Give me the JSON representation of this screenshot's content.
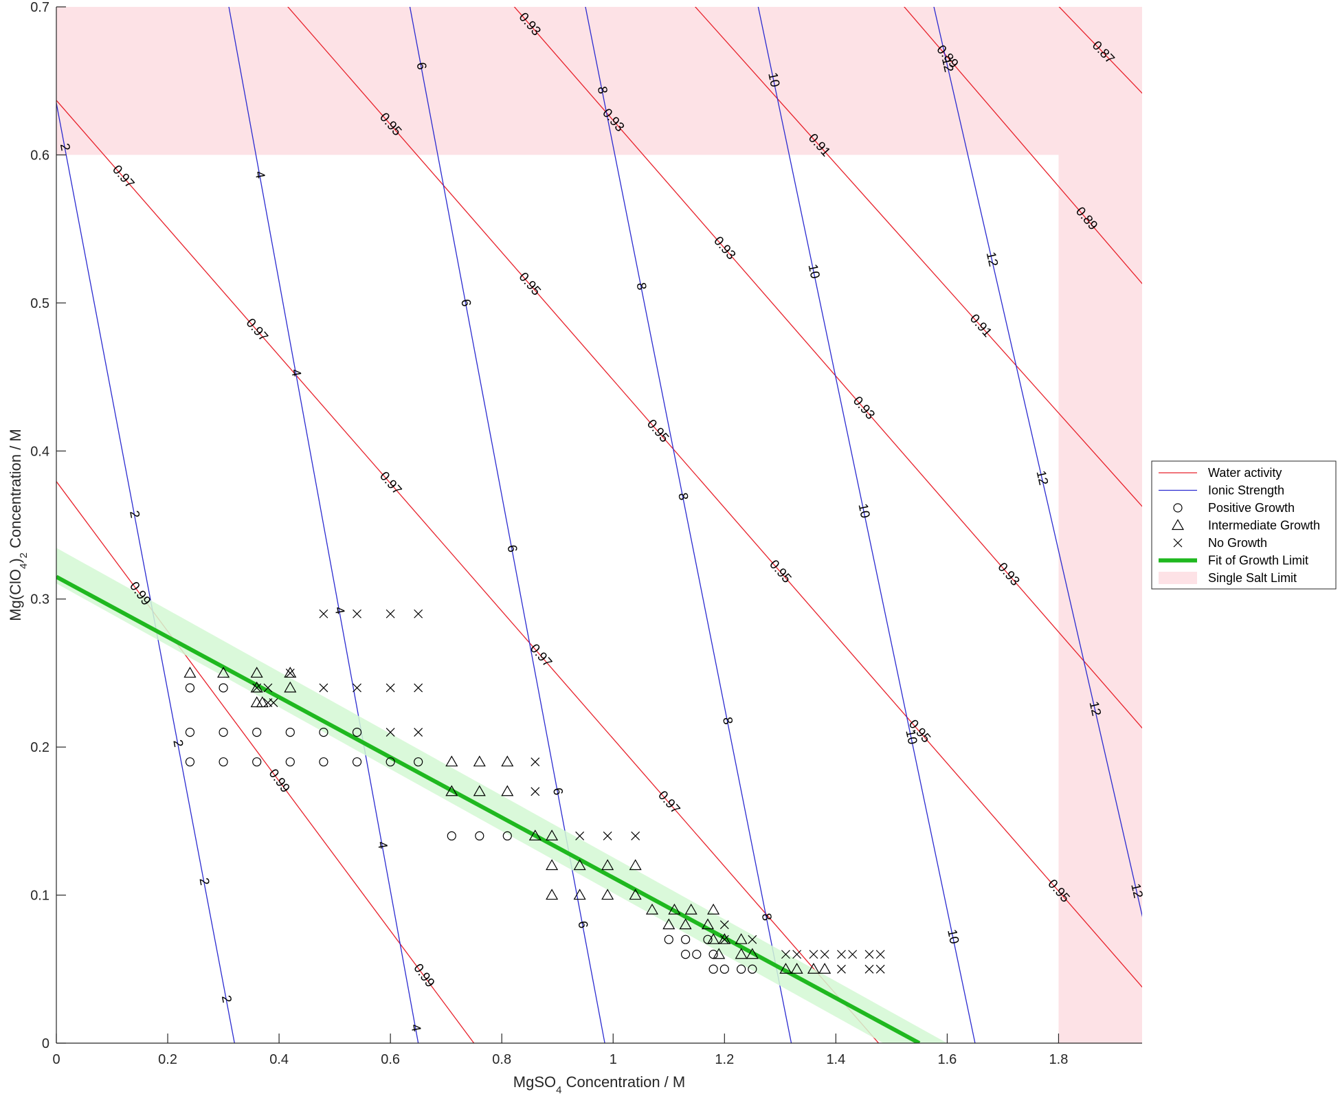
{
  "chart_data": {
    "type": "line",
    "title": "",
    "xlabel_parts": [
      "MgSO",
      "4",
      " Concentration / M"
    ],
    "ylabel_parts": [
      "Mg(ClO",
      "4",
      ")",
      "2",
      " Concentration / M"
    ],
    "xlim": [
      0,
      1.95
    ],
    "ylim": [
      0,
      0.7
    ],
    "x_ticks": [
      "0",
      "0.2",
      "0.4",
      "0.6",
      "0.8",
      "1",
      "1.2",
      "1.4",
      "1.6",
      "1.8"
    ],
    "x_tick_values": [
      0,
      0.2,
      0.4,
      0.6,
      0.8,
      1.0,
      1.2,
      1.4,
      1.6,
      1.8
    ],
    "y_ticks": [
      "0",
      "0.1",
      "0.2",
      "0.3",
      "0.4",
      "0.5",
      "0.6",
      "0.7"
    ],
    "y_tick_values": [
      0,
      0.1,
      0.2,
      0.3,
      0.4,
      0.5,
      0.6,
      0.7
    ],
    "grid": false,
    "legend_position": "right",
    "colors": {
      "water_activity": "#e8202a",
      "ionic_strength": "#2a2ad0",
      "fit": "#1fb81f",
      "fit_band": "#d4f8d4",
      "single_salt": "#fde2e6",
      "marker": "#000000"
    },
    "single_salt_limit": {
      "mgso4_max": 1.8,
      "mgclo4_max": 0.6
    },
    "fit_of_growth_limit": {
      "x": [
        0,
        1.55
      ],
      "y": [
        0.315,
        0
      ],
      "band_halfwidth_y": 0.012
    },
    "water_activity_contours": [
      {
        "label": "0.99",
        "x": [
          -0.1,
          0.75
        ],
        "y": [
          0.43,
          0.0
        ],
        "labels_at": [
          0.15,
          0.4,
          0.66
        ]
      },
      {
        "label": "0.97",
        "x": [
          -0.1,
          1.5
        ],
        "y": [
          0.68,
          -0.01
        ],
        "labels_at": [
          0.12,
          0.36,
          0.6,
          0.87,
          1.1
        ]
      },
      {
        "label": "0.95",
        "x": [
          0.3,
          1.98
        ],
        "y": [
          0.75,
          0.025
        ],
        "labels_at": [
          0.36,
          0.6,
          0.85,
          1.08,
          1.3,
          1.55,
          1.8
        ]
      },
      {
        "label": "0.93",
        "x": [
          0.73,
          1.98
        ],
        "y": [
          0.74,
          0.2
        ],
        "labels_at": [
          0.85,
          1.0,
          1.2,
          1.45,
          1.71
        ]
      },
      {
        "label": "0.91",
        "x": [
          1.1,
          1.98
        ],
        "y": [
          0.72,
          0.35
        ],
        "labels_at": [
          1.13,
          1.37,
          1.66
        ]
      },
      {
        "label": "0.89",
        "x": [
          1.5,
          1.98
        ],
        "y": [
          0.71,
          0.5
        ],
        "labels_at": [
          1.6,
          1.85
        ]
      },
      {
        "label": "0.87",
        "x": [
          1.75,
          1.98
        ],
        "y": [
          0.72,
          0.63
        ],
        "labels_at": [
          1.88
        ]
      }
    ],
    "ionic_strength_contours": [
      {
        "label": "2",
        "x": [
          0.0,
          0.32
        ],
        "y": [
          0.635,
          0.0
        ],
        "labels_at": [
          0.015,
          0.14,
          0.218,
          0.265,
          0.305
        ]
      },
      {
        "label": "4",
        "x": [
          0.305,
          0.65
        ],
        "y": [
          0.71,
          0.0
        ],
        "labels_at": [
          0.365,
          0.43,
          0.508,
          0.585,
          0.645
        ]
      },
      {
        "label": "6",
        "x": [
          0.63,
          0.985
        ],
        "y": [
          0.71,
          0.0
        ],
        "labels_at": [
          0.655,
          0.735,
          0.818,
          0.9,
          0.945
        ]
      },
      {
        "label": "8",
        "x": [
          0.945,
          1.32
        ],
        "y": [
          0.71,
          0.0
        ],
        "labels_at": [
          0.98,
          1.05,
          1.125,
          1.205,
          1.275
        ]
      },
      {
        "label": "10",
        "x": [
          1.255,
          1.65
        ],
        "y": [
          0.71,
          0.0
        ],
        "labels_at": [
          1.288,
          1.36,
          1.45,
          1.535,
          1.61
        ]
      },
      {
        "label": "12",
        "x": [
          1.57,
          1.96
        ],
        "y": [
          0.71,
          0.07
        ],
        "labels_at": [
          1.6,
          1.68,
          1.77,
          1.865,
          1.94
        ]
      }
    ],
    "series": [
      {
        "name": "Positive Growth",
        "marker": "circle",
        "points": [
          [
            0.24,
            0.24
          ],
          [
            0.24,
            0.21
          ],
          [
            0.24,
            0.19
          ],
          [
            0.3,
            0.24
          ],
          [
            0.3,
            0.21
          ],
          [
            0.3,
            0.19
          ],
          [
            0.36,
            0.21
          ],
          [
            0.36,
            0.19
          ],
          [
            0.42,
            0.21
          ],
          [
            0.42,
            0.19
          ],
          [
            0.48,
            0.21
          ],
          [
            0.48,
            0.19
          ],
          [
            0.54,
            0.21
          ],
          [
            0.54,
            0.19
          ],
          [
            0.6,
            0.19
          ],
          [
            0.65,
            0.19
          ],
          [
            0.71,
            0.14
          ],
          [
            0.76,
            0.14
          ],
          [
            0.81,
            0.14
          ],
          [
            1.1,
            0.07
          ],
          [
            1.13,
            0.07
          ],
          [
            1.13,
            0.06
          ],
          [
            1.15,
            0.06
          ],
          [
            1.17,
            0.07
          ],
          [
            1.18,
            0.06
          ],
          [
            1.18,
            0.05
          ],
          [
            1.2,
            0.05
          ],
          [
            1.23,
            0.05
          ],
          [
            1.25,
            0.05
          ]
        ]
      },
      {
        "name": "Intermediate Growth",
        "marker": "triangle",
        "points": [
          [
            0.24,
            0.25
          ],
          [
            0.3,
            0.25
          ],
          [
            0.36,
            0.25
          ],
          [
            0.36,
            0.24
          ],
          [
            0.36,
            0.23
          ],
          [
            0.37,
            0.23
          ],
          [
            0.42,
            0.25
          ],
          [
            0.42,
            0.24
          ],
          [
            0.71,
            0.19
          ],
          [
            0.71,
            0.17
          ],
          [
            0.76,
            0.19
          ],
          [
            0.76,
            0.17
          ],
          [
            0.81,
            0.19
          ],
          [
            0.81,
            0.17
          ],
          [
            0.86,
            0.14
          ],
          [
            0.89,
            0.14
          ],
          [
            0.89,
            0.12
          ],
          [
            0.89,
            0.1
          ],
          [
            0.94,
            0.12
          ],
          [
            0.94,
            0.1
          ],
          [
            0.99,
            0.12
          ],
          [
            0.99,
            0.1
          ],
          [
            1.04,
            0.12
          ],
          [
            1.04,
            0.1
          ],
          [
            1.07,
            0.09
          ],
          [
            1.1,
            0.08
          ],
          [
            1.11,
            0.09
          ],
          [
            1.13,
            0.08
          ],
          [
            1.14,
            0.09
          ],
          [
            1.17,
            0.08
          ],
          [
            1.18,
            0.09
          ],
          [
            1.18,
            0.07
          ],
          [
            1.19,
            0.06
          ],
          [
            1.2,
            0.07
          ],
          [
            1.23,
            0.07
          ],
          [
            1.23,
            0.06
          ],
          [
            1.25,
            0.06
          ],
          [
            1.31,
            0.05
          ],
          [
            1.33,
            0.05
          ],
          [
            1.36,
            0.05
          ],
          [
            1.38,
            0.05
          ]
        ]
      },
      {
        "name": "No Growth",
        "marker": "cross",
        "points": [
          [
            0.36,
            0.24
          ],
          [
            0.38,
            0.24
          ],
          [
            0.38,
            0.23
          ],
          [
            0.39,
            0.23
          ],
          [
            0.42,
            0.25
          ],
          [
            0.48,
            0.29
          ],
          [
            0.48,
            0.24
          ],
          [
            0.54,
            0.29
          ],
          [
            0.54,
            0.24
          ],
          [
            0.6,
            0.29
          ],
          [
            0.6,
            0.24
          ],
          [
            0.6,
            0.21
          ],
          [
            0.65,
            0.29
          ],
          [
            0.65,
            0.24
          ],
          [
            0.65,
            0.21
          ],
          [
            0.86,
            0.19
          ],
          [
            0.86,
            0.17
          ],
          [
            0.94,
            0.14
          ],
          [
            0.99,
            0.14
          ],
          [
            1.04,
            0.14
          ],
          [
            1.2,
            0.08
          ],
          [
            1.2,
            0.07
          ],
          [
            1.25,
            0.07
          ],
          [
            1.31,
            0.06
          ],
          [
            1.33,
            0.06
          ],
          [
            1.36,
            0.06
          ],
          [
            1.38,
            0.06
          ],
          [
            1.41,
            0.06
          ],
          [
            1.41,
            0.05
          ],
          [
            1.43,
            0.06
          ],
          [
            1.46,
            0.06
          ],
          [
            1.46,
            0.05
          ],
          [
            1.48,
            0.06
          ],
          [
            1.48,
            0.05
          ]
        ]
      }
    ],
    "legend": {
      "entries": [
        {
          "label": "Water activity",
          "symbol": "line",
          "color_key": "water_activity"
        },
        {
          "label": "Ionic Strength",
          "symbol": "line",
          "color_key": "ionic_strength"
        },
        {
          "label": "Positive Growth",
          "symbol": "circle",
          "color_key": "marker"
        },
        {
          "label": "Intermediate Growth",
          "symbol": "triangle",
          "color_key": "marker"
        },
        {
          "label": "No Growth",
          "symbol": "cross",
          "color_key": "marker"
        },
        {
          "label": "Fit of Growth Limit",
          "symbol": "thick-line",
          "color_key": "fit"
        },
        {
          "label": "Single Salt Limit",
          "symbol": "patch",
          "color_key": "single_salt"
        }
      ]
    }
  }
}
